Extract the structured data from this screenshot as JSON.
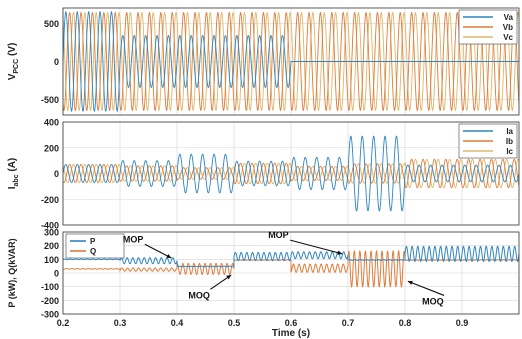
{
  "chart_data": [
    {
      "type": "line",
      "ylabel": "V_PCC (V)",
      "ylabel_main": "V",
      "ylabel_sub": "PCC",
      "ylabel_unit": "(V)",
      "xlim": [
        0.2,
        1.0
      ],
      "ylim": [
        -700,
        700
      ],
      "yticks": [
        500,
        0,
        -500
      ],
      "ytick_labels": [
        "500",
        "0",
        "-500"
      ],
      "grid": true,
      "legend_position": "top-right",
      "frequency_hz": 50,
      "series": [
        {
          "name": "Va",
          "color": "#2e86c1",
          "phase_deg": 0,
          "envelope": {
            "t": [
              0.2,
              0.3,
              0.3,
              0.6,
              0.6,
              1.0
            ],
            "amp": [
              650,
              650,
              340,
              340,
              0,
              0
            ]
          }
        },
        {
          "name": "Vb",
          "color": "#e07b39",
          "phase_deg": -120,
          "envelope": {
            "t": [
              0.2,
              1.0
            ],
            "amp": [
              640,
              640
            ]
          }
        },
        {
          "name": "Vc",
          "color": "#ddb86a",
          "phase_deg": 120,
          "envelope": {
            "t": [
              0.2,
              1.0
            ],
            "amp": [
              640,
              640
            ]
          }
        }
      ]
    },
    {
      "type": "line",
      "ylabel": "I_abc (A)",
      "ylabel_main": "I",
      "ylabel_sub": "abc",
      "ylabel_unit": "(A)",
      "xlim": [
        0.2,
        1.0
      ],
      "ylim": [
        -400,
        400
      ],
      "yticks": [
        400,
        200,
        0,
        -200,
        -400
      ],
      "ytick_labels": [
        "400",
        "200",
        "0",
        "-200",
        "-400"
      ],
      "grid": true,
      "legend_position": "top-right",
      "frequency_hz": 50,
      "series": [
        {
          "name": "Ia",
          "color": "#2e86c1",
          "phase_deg": 0,
          "envelope": {
            "t": [
              0.2,
              0.3,
              0.3,
              0.4,
              0.4,
              0.5,
              0.5,
              0.6,
              0.6,
              0.7,
              0.7,
              0.8,
              0.8,
              1.0
            ],
            "amp": [
              70,
              70,
              100,
              100,
              150,
              150,
              95,
              95,
              125,
              125,
              290,
              290,
              65,
              65
            ]
          }
        },
        {
          "name": "Ib",
          "color": "#e07b39",
          "phase_deg": -120,
          "envelope": {
            "t": [
              0.2,
              0.3,
              0.3,
              0.4,
              0.4,
              0.5,
              0.5,
              0.6,
              0.6,
              0.7,
              0.7,
              0.8,
              0.8,
              1.0
            ],
            "amp": [
              70,
              70,
              60,
              60,
              45,
              45,
              80,
              80,
              55,
              55,
              75,
              75,
              110,
              110
            ]
          }
        },
        {
          "name": "Ic",
          "color": "#ddb86a",
          "phase_deg": 120,
          "envelope": {
            "t": [
              0.2,
              0.3,
              0.3,
              0.4,
              0.4,
              0.5,
              0.5,
              0.6,
              0.6,
              0.7,
              0.7,
              0.8,
              0.8,
              1.0
            ],
            "amp": [
              70,
              70,
              60,
              60,
              45,
              45,
              80,
              80,
              55,
              55,
              75,
              75,
              110,
              110
            ]
          }
        }
      ]
    },
    {
      "type": "line",
      "ylabel": "P (kW), Q(kVAR)",
      "xlabel": "Time (s)",
      "xlim": [
        0.2,
        1.0
      ],
      "ylim": [
        -300,
        300
      ],
      "yticks": [
        300,
        200,
        100,
        0,
        -100,
        -200,
        -300
      ],
      "ytick_labels": [
        "300",
        "200",
        "100",
        "0",
        "-100",
        "-200",
        "-300"
      ],
      "xticks": [
        0.2,
        0.3,
        0.4,
        0.5,
        0.6,
        0.7,
        0.8,
        0.9
      ],
      "xtick_labels": [
        "0.2",
        "0.3",
        "0.4",
        "0.5",
        "0.6",
        "0.7",
        "0.8",
        "0.9"
      ],
      "grid": true,
      "legend_position": "top-left",
      "series": [
        {
          "name": "P",
          "color": "#2e86c1",
          "segments": [
            {
              "t0": 0.2,
              "t1": 0.3,
              "mean": 100,
              "ripple": 2
            },
            {
              "t0": 0.3,
              "t1": 0.4,
              "mean": 90,
              "ripple": 22
            },
            {
              "t0": 0.4,
              "t1": 0.5,
              "mean": 48,
              "ripple": 2
            },
            {
              "t0": 0.5,
              "t1": 0.6,
              "mean": 120,
              "ripple": 30
            },
            {
              "t0": 0.6,
              "t1": 0.7,
              "mean": 130,
              "ripple": 25
            },
            {
              "t0": 0.7,
              "t1": 0.8,
              "mean": 95,
              "ripple": 2
            },
            {
              "t0": 0.8,
              "t1": 1.0,
              "mean": 140,
              "ripple": 55
            }
          ]
        },
        {
          "name": "Q",
          "color": "#e07b39",
          "segments": [
            {
              "t0": 0.2,
              "t1": 0.3,
              "mean": 30,
              "ripple": 2
            },
            {
              "t0": 0.3,
              "t1": 0.4,
              "mean": 25,
              "ripple": 12
            },
            {
              "t0": 0.4,
              "t1": 0.5,
              "mean": 30,
              "ripple": 40
            },
            {
              "t0": 0.5,
              "t1": 0.6,
              "mean": 95,
              "ripple": 2
            },
            {
              "t0": 0.6,
              "t1": 0.7,
              "mean": 35,
              "ripple": 30
            },
            {
              "t0": 0.7,
              "t1": 0.8,
              "mean": 30,
              "ripple": 130
            },
            {
              "t0": 0.8,
              "t1": 1.0,
              "mean": 95,
              "ripple": 2
            }
          ]
        }
      ],
      "annotations": [
        {
          "text": "MOP",
          "target": {
            "x": 0.39,
            "y": 110
          }
        },
        {
          "text": "MOQ",
          "target": {
            "x": 0.495,
            "y": -15
          }
        },
        {
          "text": "MOP",
          "target": {
            "x": 0.69,
            "y": 140
          }
        },
        {
          "text": "MOQ",
          "target": {
            "x": 0.805,
            "y": -60
          }
        }
      ]
    }
  ]
}
